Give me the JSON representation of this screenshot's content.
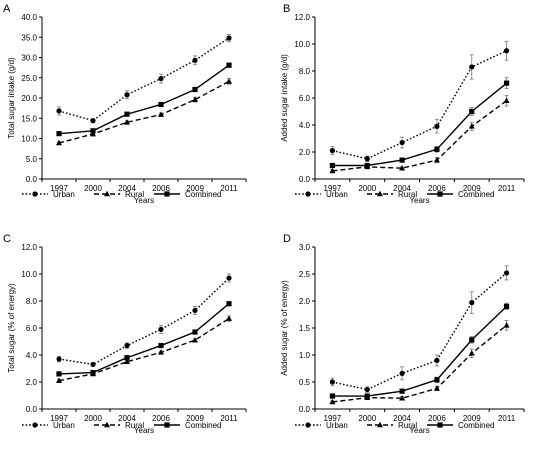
{
  "chart_data": [
    {
      "type": "line",
      "panel_label": "A",
      "ylabel": "Total sugar intake (g/d)",
      "xlabel": "Years",
      "categories": [
        "1997",
        "2000",
        "2004",
        "2006",
        "2009",
        "2011"
      ],
      "ylim": [
        0,
        40
      ],
      "yticks": [
        0,
        5,
        10,
        15,
        20,
        25,
        30,
        35,
        40
      ],
      "ytick_labels": [
        "0.0",
        "5.0",
        "10.0",
        "15.0",
        "20.0",
        "25.0",
        "30.0",
        "35.0",
        "40.0"
      ],
      "series": [
        {
          "name": "Urban",
          "values": [
            16.8,
            14.4,
            20.8,
            24.8,
            29.3,
            34.8
          ],
          "errors": [
            1.0,
            0.5,
            1.0,
            1.1,
            1.1,
            0.9
          ]
        },
        {
          "name": "Rural",
          "values": [
            8.9,
            11.1,
            14.0,
            15.9,
            19.6,
            24.1
          ],
          "errors": [
            0.3,
            0.4,
            0.4,
            0.4,
            0.6,
            0.7
          ]
        },
        {
          "name": "Combined",
          "values": [
            11.2,
            11.9,
            16.0,
            18.4,
            22.1,
            28.1
          ],
          "errors": [
            0.3,
            0.3,
            0.3,
            0.3,
            0.4,
            0.5
          ]
        }
      ]
    },
    {
      "type": "line",
      "panel_label": "B",
      "ylabel": "Added sugar intake (g/d)",
      "xlabel": "Years",
      "categories": [
        "1997",
        "2000",
        "2004",
        "2006",
        "2009",
        "2011"
      ],
      "ylim": [
        0,
        12
      ],
      "yticks": [
        0,
        2,
        4,
        6,
        8,
        10,
        12
      ],
      "ytick_labels": [
        "0.0",
        "2.0",
        "4.0",
        "6.0",
        "8.0",
        "10.0",
        "12.0"
      ],
      "series": [
        {
          "name": "Urban",
          "values": [
            2.1,
            1.5,
            2.7,
            3.9,
            8.3,
            9.5
          ],
          "errors": [
            0.3,
            0.2,
            0.4,
            0.5,
            0.9,
            0.7
          ]
        },
        {
          "name": "Rural",
          "values": [
            0.6,
            0.9,
            0.8,
            1.4,
            3.9,
            5.8
          ],
          "errors": [
            0.1,
            0.1,
            0.1,
            0.2,
            0.3,
            0.4
          ]
        },
        {
          "name": "Combined",
          "values": [
            1.0,
            1.0,
            1.4,
            2.2,
            5.0,
            7.1
          ],
          "errors": [
            0.1,
            0.1,
            0.1,
            0.2,
            0.3,
            0.4
          ]
        }
      ]
    },
    {
      "type": "line",
      "panel_label": "C",
      "ylabel": "Total sugar (% of energy)",
      "xlabel": "Years",
      "categories": [
        "1997",
        "2000",
        "2004",
        "2006",
        "2009",
        "2011"
      ],
      "ylim": [
        0,
        12
      ],
      "yticks": [
        0,
        2,
        4,
        6,
        8,
        10,
        12
      ],
      "ytick_labels": [
        "0.0",
        "2.0",
        "4.0",
        "6.0",
        "8.0",
        "10.0",
        "12.0"
      ],
      "series": [
        {
          "name": "Urban",
          "values": [
            3.7,
            3.3,
            4.7,
            5.9,
            7.3,
            9.7
          ],
          "errors": [
            0.2,
            0.1,
            0.2,
            0.3,
            0.3,
            0.3
          ]
        },
        {
          "name": "Rural",
          "values": [
            2.1,
            2.6,
            3.5,
            4.2,
            5.1,
            6.7
          ],
          "errors": [
            0.1,
            0.1,
            0.1,
            0.1,
            0.1,
            0.2
          ]
        },
        {
          "name": "Combined",
          "values": [
            2.6,
            2.7,
            3.8,
            4.7,
            5.7,
            7.8
          ],
          "errors": [
            0.1,
            0.1,
            0.1,
            0.1,
            0.1,
            0.1
          ]
        }
      ]
    },
    {
      "type": "line",
      "panel_label": "D",
      "ylabel": "Added sugar (% of energy)",
      "xlabel": "Years",
      "categories": [
        "1997",
        "2000",
        "2004",
        "2006",
        "2009",
        "2011"
      ],
      "ylim": [
        0,
        3
      ],
      "yticks": [
        0,
        0.5,
        1,
        1.5,
        2,
        2.5,
        3
      ],
      "ytick_labels": [
        "0.0",
        "0.5",
        "1.0",
        "1.5",
        "2.0",
        "2.5",
        "3.0"
      ],
      "series": [
        {
          "name": "Urban",
          "values": [
            0.5,
            0.36,
            0.66,
            0.9,
            1.97,
            2.52
          ],
          "errors": [
            0.07,
            0.05,
            0.12,
            0.1,
            0.2,
            0.13
          ]
        },
        {
          "name": "Rural",
          "values": [
            0.13,
            0.21,
            0.2,
            0.38,
            1.03,
            1.55
          ],
          "errors": [
            0.02,
            0.03,
            0.03,
            0.04,
            0.08,
            0.09
          ]
        },
        {
          "name": "Combined",
          "values": [
            0.24,
            0.24,
            0.33,
            0.54,
            1.28,
            1.9
          ],
          "errors": [
            0.03,
            0.03,
            0.03,
            0.05,
            0.06,
            0.06
          ]
        }
      ]
    }
  ],
  "legend": {
    "entries": [
      "Urban",
      "Rural",
      "Combined"
    ]
  },
  "series_styles": [
    {
      "name": "Urban",
      "line": "dotted",
      "marker": "circle",
      "color": "#000000"
    },
    {
      "name": "Rural",
      "line": "dashed",
      "marker": "triangle",
      "color": "#000000"
    },
    {
      "name": "Combined",
      "line": "solid",
      "marker": "square",
      "color": "#000000"
    }
  ],
  "colors": {
    "background": "#ffffff",
    "ink": "#000000",
    "errorbar": "#777777"
  }
}
